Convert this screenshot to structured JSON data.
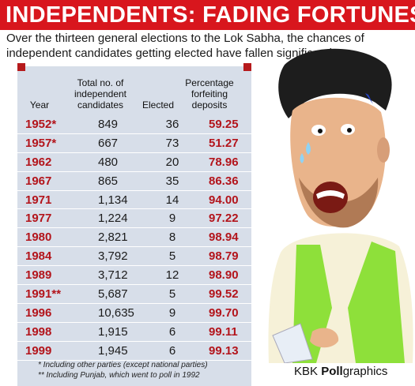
{
  "headline": "INDEPENDENTS: FADING FORTUNES",
  "subhead": [
    "Over the thirteen general elections to the Lok Sabha, the chances of",
    "independent candidates getting elected have fallen significantly"
  ],
  "chart_data": {
    "type": "table",
    "columns": [
      "Year",
      "Total no. of independent candidates",
      "Elected",
      "Percentage forfeiting deposits"
    ],
    "column_lines": {
      "year": [
        "Year"
      ],
      "total": [
        "Total no. of",
        "independent",
        "candidates"
      ],
      "elected": [
        "Elected"
      ],
      "pct": [
        "Percentage",
        "forfeiting",
        "deposits"
      ]
    },
    "rows": [
      {
        "year": "1952*",
        "total": "849",
        "elected": "36",
        "pct": "59.25"
      },
      {
        "year": "1957*",
        "total": "667",
        "elected": "73",
        "pct": "51.27"
      },
      {
        "year": "1962",
        "total": "480",
        "elected": "20",
        "pct": "78.96"
      },
      {
        "year": "1967",
        "total": "865",
        "elected": "35",
        "pct": "86.36"
      },
      {
        "year": "1971",
        "total": "1,134",
        "elected": "14",
        "pct": "94.00"
      },
      {
        "year": "1977",
        "total": "1,224",
        "elected": "9",
        "pct": "97.22"
      },
      {
        "year": "1980",
        "total": "2,821",
        "elected": "8",
        "pct": "98.94"
      },
      {
        "year": "1984",
        "total": "3,792",
        "elected": "5",
        "pct": "98.79"
      },
      {
        "year": "1989",
        "total": "3,712",
        "elected": "12",
        "pct": "98.90"
      },
      {
        "year": "1991**",
        "total": "5,687",
        "elected": "5",
        "pct": "99.52"
      },
      {
        "year": "1996",
        "total": "10,635",
        "elected": "9",
        "pct": "99.70"
      },
      {
        "year": "1998",
        "total": "1,915",
        "elected": "6",
        "pct": "99.11"
      },
      {
        "year": "1999",
        "total": "1,945",
        "elected": "6",
        "pct": "99.13"
      }
    ]
  },
  "footnotes": [
    "* Including other parties (except national parties)",
    "** Including Punjab, which went to poll in 1992"
  ],
  "credit": {
    "prefix": "KBK ",
    "bold": "Poll",
    "suffix": "graphics"
  },
  "colors": {
    "headline_bg": "#d8161d",
    "panel_bg": "#d7dee9",
    "accent_red": "#b3141b",
    "vest_green": "#8ee03a"
  }
}
